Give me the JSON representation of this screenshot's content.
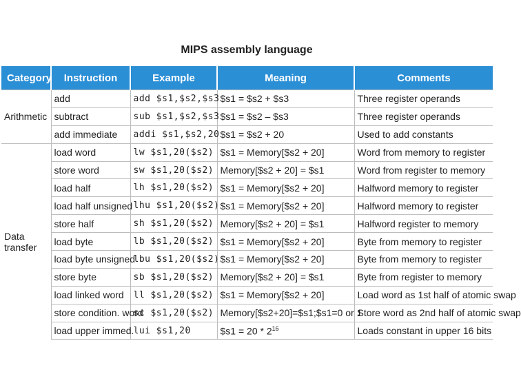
{
  "title": "MIPS assembly language",
  "header": [
    "Category",
    "Instruction",
    "Example",
    "Meaning",
    "Comments"
  ],
  "groups": [
    {
      "category": "Arithmetic",
      "rows": [
        [
          "add",
          "add $s1,$s2,$s3",
          "$s1 = $s2 + $s3",
          "Three register operands"
        ],
        [
          "subtract",
          "sub $s1,$s2,$s3",
          "$s1 = $s2 – $s3",
          "Three register operands"
        ],
        [
          "add immediate",
          "addi $s1,$s2,20",
          "$s1 = $s2 + 20",
          "Used to add constants"
        ]
      ]
    },
    {
      "category": "Data transfer",
      "rows": [
        [
          "load word",
          "lw $s1,20($s2)",
          "$s1 = Memory[$s2 + 20]",
          "Word from memory to register"
        ],
        [
          "store word",
          "sw $s1,20($s2)",
          "Memory[$s2 + 20] = $s1",
          "Word from register to memory"
        ],
        [
          "load half",
          "lh $s1,20($s2)",
          "$s1 = Memory[$s2 + 20]",
          "Halfword memory to register"
        ],
        [
          "load half unsigned",
          "lhu $s1,20($s2)",
          "$s1 = Memory[$s2 + 20]",
          "Halfword memory to register"
        ],
        [
          "store half",
          "sh $s1,20($s2)",
          "Memory[$s2 + 20] = $s1",
          "Halfword register to memory"
        ],
        [
          "load byte",
          "lb $s1,20($s2)",
          "$s1 = Memory[$s2 + 20]",
          "Byte from memory to register"
        ],
        [
          "load byte unsigned",
          "lbu $s1,20($s2)",
          "$s1 = Memory[$s2 + 20]",
          "Byte from memory to register"
        ],
        [
          "store byte",
          "sb $s1,20($s2)",
          "Memory[$s2 + 20] = $s1",
          "Byte from register to memory"
        ],
        [
          "load linked word",
          "ll $s1,20($s2)",
          "$s1 = Memory[$s2 + 20]",
          "Load word as 1st half of atomic swap"
        ],
        [
          "store condition. word",
          "sc $s1,20($s2)",
          "Memory[$s2+20]=$s1;$s1=0 or 1",
          "Store word as 2nd half of atomic swap"
        ],
        [
          "load upper immed.",
          "lui $s1,20",
          {
            "text": "$s1 = 20 * 2",
            "sup": "16"
          },
          "Loads constant in upper 16 bits"
        ]
      ]
    }
  ]
}
